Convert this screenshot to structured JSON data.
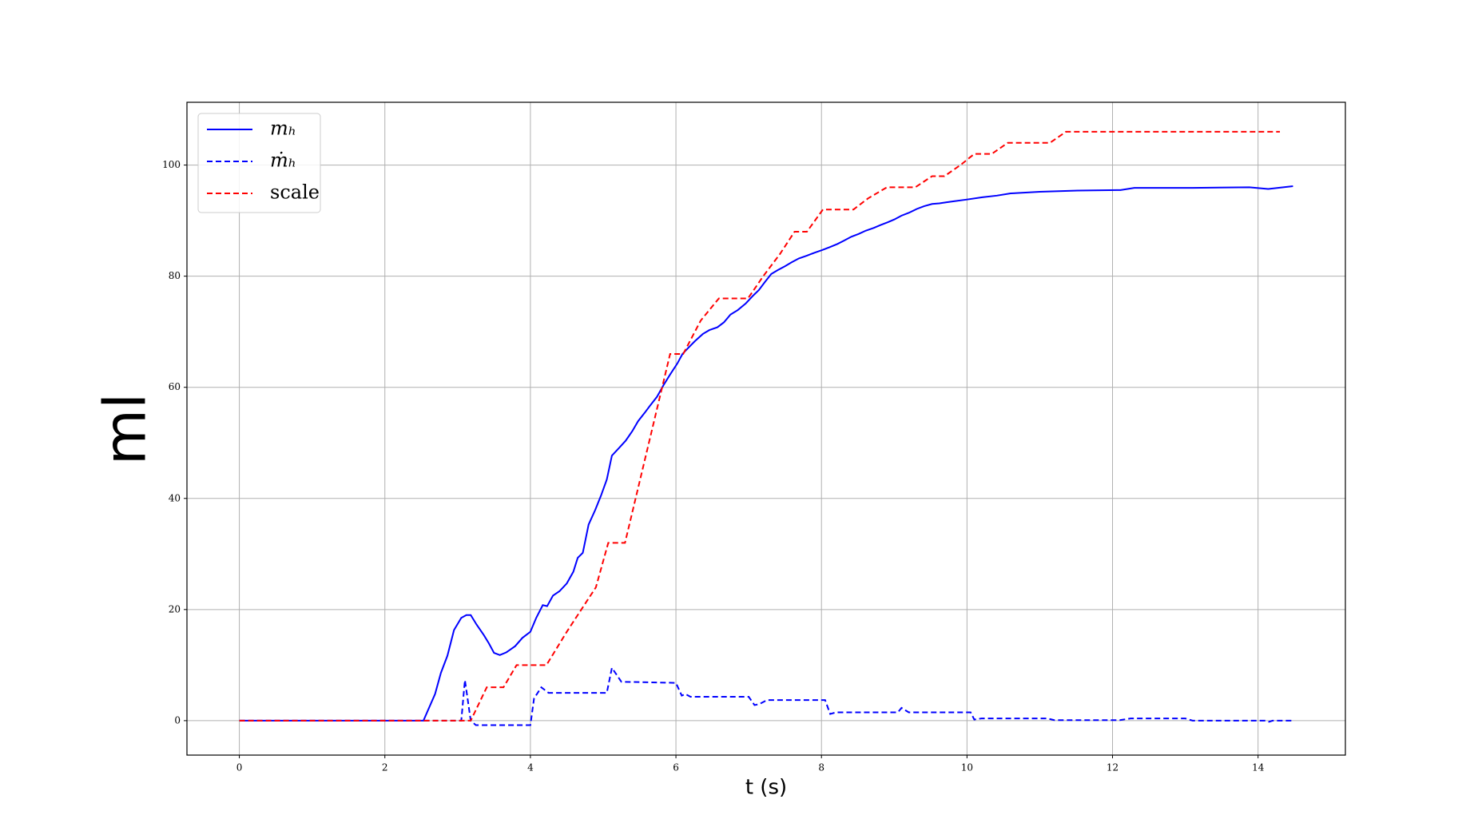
{
  "chart_data": {
    "type": "line",
    "xlabel": "t (s)",
    "ylabel": "ml",
    "xlim": [
      -0.72,
      15.2
    ],
    "xticks": [
      0,
      2,
      4,
      6,
      8,
      10,
      12,
      14
    ],
    "ylim": [
      -6.2,
      111.3
    ],
    "yticks": [
      0,
      20,
      40,
      60,
      80,
      100
    ],
    "grid": true,
    "legend": "upper left",
    "series": [
      {
        "name": "mₕ",
        "color": "#0000ff",
        "dashed": false,
        "x": [
          0,
          2.53,
          2.69,
          2.77,
          2.86,
          2.95,
          3.05,
          3.12,
          3.18,
          3.26,
          3.36,
          3.43,
          3.5,
          3.58,
          3.67,
          3.79,
          3.89,
          4.0,
          4.08,
          4.17,
          4.23,
          4.31,
          4.4,
          4.5,
          4.59,
          4.65,
          4.72,
          4.8,
          4.89,
          4.97,
          5.05,
          5.12,
          5.22,
          5.31,
          5.4,
          5.48,
          5.57,
          5.65,
          5.74,
          5.83,
          5.92,
          6.02,
          6.09,
          6.17,
          6.26,
          6.37,
          6.46,
          6.57,
          6.66,
          6.75,
          6.85,
          6.96,
          7.06,
          7.14,
          7.22,
          7.31,
          7.4,
          7.5,
          7.59,
          7.69,
          7.8,
          7.9,
          8.01,
          8.11,
          8.22,
          8.31,
          8.41,
          8.51,
          8.61,
          8.72,
          8.81,
          8.91,
          9.0,
          9.1,
          9.2,
          9.31,
          9.41,
          9.52,
          9.62,
          9.72,
          9.83,
          10.0,
          10.21,
          10.41,
          10.6,
          11.0,
          11.52,
          12.11,
          12.3,
          13.1,
          13.88,
          14.14,
          14.48
        ],
        "values": [
          0,
          0,
          4.8,
          8.6,
          11.7,
          16.3,
          18.5,
          19,
          19,
          17.3,
          15.4,
          13.9,
          12.2,
          11.8,
          12.3,
          13.4,
          14.9,
          16,
          18.5,
          20.8,
          20.6,
          22.5,
          23.3,
          24.7,
          26.8,
          29.3,
          30.2,
          35.3,
          37.9,
          40.5,
          43.4,
          47.7,
          49.1,
          50.4,
          52.1,
          53.9,
          55.4,
          56.8,
          58.3,
          60.4,
          62.3,
          64.3,
          66,
          67.1,
          68.3,
          69.6,
          70.3,
          70.8,
          71.7,
          73.1,
          73.9,
          75.1,
          76.5,
          77.5,
          78.9,
          80.4,
          81.1,
          81.8,
          82.5,
          83.2,
          83.7,
          84.2,
          84.7,
          85.2,
          85.8,
          86.4,
          87.1,
          87.6,
          88.2,
          88.7,
          89.2,
          89.7,
          90.2,
          90.9,
          91.4,
          92.1,
          92.6,
          93,
          93.1,
          93.3,
          93.5,
          93.8,
          94.2,
          94.5,
          94.9,
          95.2,
          95.4,
          95.5,
          95.9,
          95.9,
          96,
          95.7,
          96.2
        ]
      },
      {
        "name": "ṁₕ",
        "color": "#0000ff",
        "dashed": true,
        "x": [
          0,
          3.05,
          3.1,
          3.18,
          3.25,
          4.0,
          4.05,
          4.15,
          4.25,
          5.05,
          5.12,
          5.25,
          6.0,
          6.08,
          6.13,
          6.2,
          7.0,
          7.08,
          7.15,
          7.25,
          8.05,
          8.12,
          8.2,
          9.05,
          9.1,
          9.2,
          10.05,
          10.1,
          10.2,
          11.1,
          11.2,
          12.1,
          12.25,
          13.0,
          13.1,
          14.1,
          14.15,
          14.2,
          14.5
        ],
        "values": [
          0,
          0,
          7.3,
          0,
          -0.8,
          -0.8,
          4,
          6,
          5,
          5,
          9.5,
          7,
          6.8,
          4.5,
          4.8,
          4.3,
          4.3,
          2.8,
          3,
          3.7,
          3.7,
          1.2,
          1.5,
          1.5,
          2.3,
          1.5,
          1.5,
          0.2,
          0.4,
          0.4,
          0.1,
          0.1,
          0.4,
          0.4,
          0,
          0,
          -0.2,
          0,
          0
        ]
      },
      {
        "name": "scale",
        "color": "#ff0000",
        "dashed": true,
        "x": [
          0,
          3.18,
          3.4,
          3.63,
          3.81,
          4.22,
          4.5,
          4.8,
          4.9,
          5.07,
          5.3,
          5.92,
          6.1,
          6.34,
          6.59,
          6.99,
          7.2,
          7.43,
          7.63,
          7.8,
          8.02,
          8.44,
          8.64,
          8.9,
          9.29,
          9.52,
          9.69,
          9.91,
          10.1,
          10.34,
          10.56,
          11.14,
          11.36,
          14.3
        ],
        "values": [
          0,
          0,
          6,
          6,
          10,
          10,
          16,
          22,
          24,
          32,
          32,
          66,
          66,
          72,
          76,
          76,
          80,
          84,
          88,
          88,
          92,
          92,
          94,
          96,
          96,
          98,
          98,
          100,
          102,
          102,
          104,
          104,
          106,
          106
        ]
      }
    ]
  }
}
